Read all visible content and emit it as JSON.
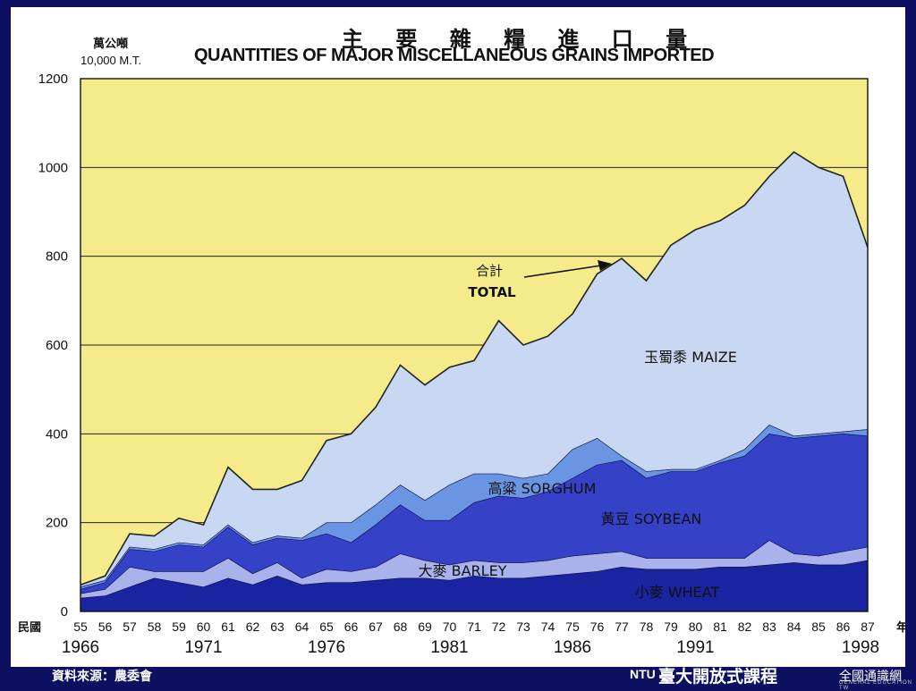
{
  "title_zh": "主 要 雜 糧 進 口 量",
  "title_en": "QUANTITIES OF MAJOR MISCELLANEOUS GRAINS IMPORTED",
  "unit_zh": "萬公噸",
  "unit_en": "10,000 M.T.",
  "footer": {
    "source": "資料來源：農委會",
    "logo_mark": "NTU",
    "logo_text": "臺大開放式課程",
    "network_text": "全國通識網",
    "network_sub": "GENERAL EDUCATION TW"
  },
  "colors": {
    "background": "#0d1060",
    "plot_bg": "#f5eb8a",
    "wheat": "#1a24a0",
    "barley": "#a9b2ea",
    "soybean": "#3542c8",
    "sorghum": "#6a95e2",
    "maize": "#c9d8f2"
  },
  "chart_data": {
    "type": "area",
    "stacked": true,
    "x": [
      "55",
      "56",
      "57",
      "58",
      "59",
      "60",
      "61",
      "62",
      "63",
      "64",
      "65",
      "66",
      "67",
      "68",
      "69",
      "70",
      "71",
      "72",
      "73",
      "74",
      "75",
      "76",
      "77",
      "78",
      "79",
      "80",
      "81",
      "82",
      "83",
      "84",
      "85",
      "86",
      "87"
    ],
    "x_prefix_label": "民國",
    "x_suffix_label": "年",
    "year_labels": [
      {
        "x": "55",
        "label": "1966"
      },
      {
        "x": "60",
        "label": "1971"
      },
      {
        "x": "65",
        "label": "1976"
      },
      {
        "x": "70",
        "label": "1981"
      },
      {
        "x": "75",
        "label": "1986"
      },
      {
        "x": "80",
        "label": "1991"
      },
      {
        "x": "87",
        "label": "1998"
      }
    ],
    "ylim": [
      0,
      1200
    ],
    "yticks": [
      0,
      200,
      400,
      600,
      800,
      1000,
      1200
    ],
    "grid": true,
    "series": [
      {
        "name": "小麥 WHEAT",
        "key": "wheat",
        "values": [
          30,
          35,
          55,
          75,
          65,
          55,
          75,
          60,
          80,
          60,
          65,
          65,
          70,
          75,
          75,
          70,
          80,
          75,
          75,
          80,
          85,
          90,
          100,
          95,
          95,
          95,
          100,
          100,
          105,
          110,
          105,
          105,
          115
        ]
      },
      {
        "name": "大麥 BARLEY",
        "key": "barley",
        "values": [
          10,
          15,
          45,
          15,
          25,
          35,
          45,
          25,
          30,
          15,
          30,
          25,
          30,
          55,
          40,
          35,
          35,
          35,
          35,
          35,
          40,
          40,
          35,
          25,
          25,
          25,
          20,
          20,
          55,
          20,
          20,
          30,
          30
        ]
      },
      {
        "name": "黃豆 SOYBEAN",
        "key": "soybean",
        "values": [
          10,
          15,
          40,
          45,
          60,
          55,
          70,
          65,
          55,
          85,
          80,
          65,
          95,
          110,
          90,
          100,
          130,
          150,
          145,
          155,
          175,
          200,
          205,
          180,
          195,
          195,
          215,
          230,
          240,
          260,
          270,
          265,
          250
        ]
      },
      {
        "name": "高粱 SORGHUM",
        "key": "sorghum",
        "values": [
          5,
          5,
          5,
          5,
          5,
          5,
          5,
          5,
          5,
          5,
          25,
          45,
          45,
          45,
          45,
          80,
          65,
          50,
          45,
          40,
          65,
          60,
          10,
          15,
          5,
          5,
          5,
          15,
          20,
          5,
          5,
          5,
          15
        ]
      },
      {
        "name": "玉蜀黍 MAIZE",
        "key": "maize",
        "values": [
          5,
          10,
          30,
          30,
          55,
          45,
          130,
          120,
          105,
          130,
          185,
          200,
          220,
          270,
          260,
          265,
          255,
          345,
          300,
          310,
          305,
          370,
          445,
          430,
          505,
          540,
          540,
          550,
          560,
          640,
          600,
          575,
          410
        ]
      }
    ],
    "totals": [
      60,
      80,
      175,
      170,
      210,
      195,
      325,
      275,
      275,
      295,
      385,
      400,
      460,
      555,
      510,
      550,
      565,
      655,
      600,
      620,
      670,
      760,
      795,
      745,
      825,
      860,
      880,
      915,
      980,
      1035,
      1000,
      980,
      820
    ],
    "annotations": {
      "total_zh": "合計",
      "total_en": "TOTAL",
      "maize": "玉蜀黍 MAIZE",
      "sorghum": "高粱 SORGHUM",
      "soybean": "黃豆 SOYBEAN",
      "barley": "大麥 BARLEY",
      "wheat": "小麥 WHEAT"
    }
  }
}
